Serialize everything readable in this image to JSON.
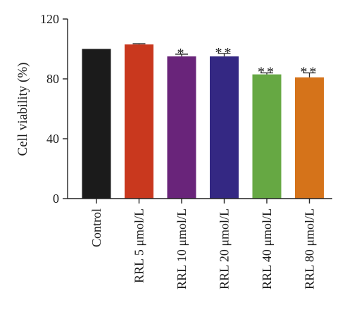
{
  "chart_data": {
    "type": "bar",
    "categories": [
      "Control",
      "RRL 5 μmol/L",
      "RRL 10 μmol/L",
      "RRL 20 μmol/L",
      "RRL 40 μmol/L",
      "RRL 80 μmol/L"
    ],
    "values": [
      100,
      103,
      95,
      95,
      83,
      81
    ],
    "error": [
      0,
      0.5,
      1.5,
      2,
      1,
      3
    ],
    "significance": [
      "",
      "",
      "*",
      "**",
      "**",
      "**"
    ],
    "colors": [
      "#1b1b1b",
      "#c9381e",
      "#69247a",
      "#342883",
      "#66a843",
      "#d5731a"
    ],
    "ylabel": "Cell viability (%)",
    "xlabel": "",
    "title": "",
    "ylim": [
      0,
      120
    ],
    "yticks": [
      0,
      40,
      80,
      120
    ],
    "grid": false,
    "legend": "none"
  }
}
